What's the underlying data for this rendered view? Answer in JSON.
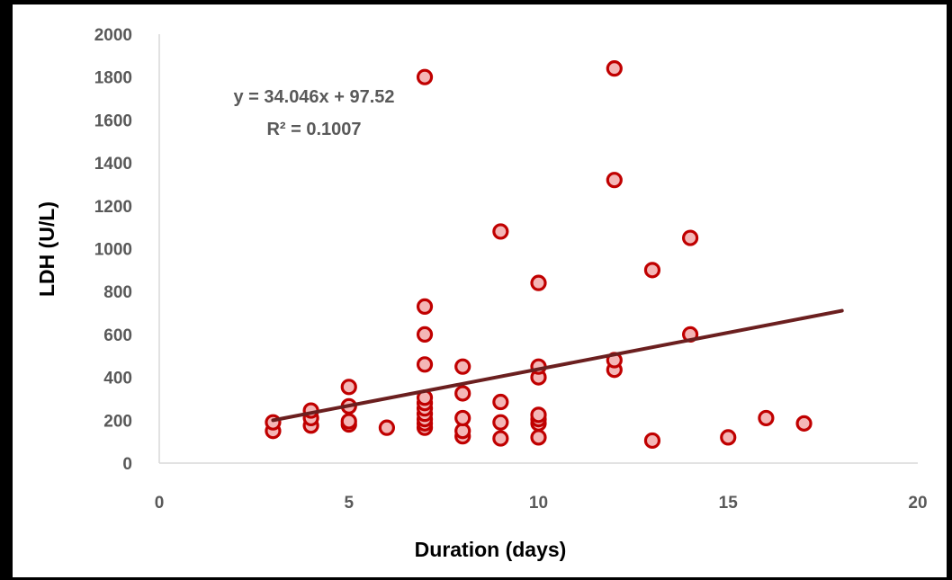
{
  "chart_data": {
    "type": "scatter",
    "title": "",
    "xlabel": "Duration (days)",
    "ylabel": "LDH (U/L)",
    "xlim": [
      0,
      20
    ],
    "ylim": [
      0,
      2000
    ],
    "x_ticks": [
      0,
      5,
      10,
      15,
      20
    ],
    "y_ticks": [
      0,
      200,
      400,
      600,
      800,
      1000,
      1200,
      1400,
      1600,
      1800,
      2000
    ],
    "x_tick_labels": [
      "0",
      "5",
      "10",
      "15",
      "20"
    ],
    "y_tick_labels": [
      "0",
      "200",
      "400",
      "600",
      "800",
      "1000",
      "1200",
      "1400",
      "1600",
      "1800",
      "2000"
    ],
    "grid": false,
    "legend": "none",
    "colors": {
      "marker_fill": "#cc0000",
      "marker_edge": "#c00000",
      "marker_inner": "#f4b6b6",
      "trendline": "#6b1f1f",
      "axis": "#d9d9d9"
    },
    "series": [
      {
        "points": [
          {
            "x": 3,
            "y": 150
          },
          {
            "x": 3,
            "y": 190
          },
          {
            "x": 4,
            "y": 175
          },
          {
            "x": 4,
            "y": 210
          },
          {
            "x": 4,
            "y": 245
          },
          {
            "x": 5,
            "y": 180
          },
          {
            "x": 5,
            "y": 195
          },
          {
            "x": 5,
            "y": 265
          },
          {
            "x": 5,
            "y": 355
          },
          {
            "x": 6,
            "y": 165
          },
          {
            "x": 7,
            "y": 165
          },
          {
            "x": 7,
            "y": 185
          },
          {
            "x": 7,
            "y": 205
          },
          {
            "x": 7,
            "y": 230
          },
          {
            "x": 7,
            "y": 255
          },
          {
            "x": 7,
            "y": 280
          },
          {
            "x": 7,
            "y": 305
          },
          {
            "x": 7,
            "y": 460
          },
          {
            "x": 7,
            "y": 600
          },
          {
            "x": 7,
            "y": 730
          },
          {
            "x": 7,
            "y": 1800
          },
          {
            "x": 8,
            "y": 125
          },
          {
            "x": 8,
            "y": 150
          },
          {
            "x": 8,
            "y": 210
          },
          {
            "x": 8,
            "y": 325
          },
          {
            "x": 8,
            "y": 450
          },
          {
            "x": 9,
            "y": 115
          },
          {
            "x": 9,
            "y": 190
          },
          {
            "x": 9,
            "y": 285
          },
          {
            "x": 9,
            "y": 1080
          },
          {
            "x": 10,
            "y": 120
          },
          {
            "x": 10,
            "y": 185
          },
          {
            "x": 10,
            "y": 205
          },
          {
            "x": 10,
            "y": 225
          },
          {
            "x": 10,
            "y": 400
          },
          {
            "x": 10,
            "y": 450
          },
          {
            "x": 10,
            "y": 840
          },
          {
            "x": 12,
            "y": 435
          },
          {
            "x": 12,
            "y": 480
          },
          {
            "x": 12,
            "y": 1320
          },
          {
            "x": 12,
            "y": 1840
          },
          {
            "x": 13,
            "y": 105
          },
          {
            "x": 13,
            "y": 900
          },
          {
            "x": 14,
            "y": 600
          },
          {
            "x": 14,
            "y": 1050
          },
          {
            "x": 15,
            "y": 120
          },
          {
            "x": 16,
            "y": 210
          },
          {
            "x": 17,
            "y": 185
          }
        ]
      }
    ],
    "trendline": {
      "type": "linear",
      "slope": 34.046,
      "intercept": 97.52,
      "x_range": [
        3,
        18
      ],
      "equation": "y = 34.046x + 97.52",
      "r_squared": "R² = 0.1007"
    }
  }
}
